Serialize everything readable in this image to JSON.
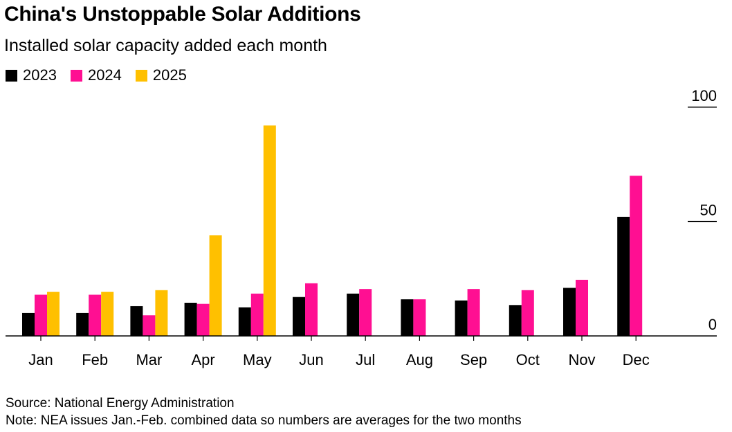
{
  "header": {
    "title": "China's Unstoppable Solar Additions",
    "subtitle": "Installed solar capacity added each month"
  },
  "footer": {
    "source": "Source: National Energy Administration",
    "note": "Note: NEA issues Jan.-Feb. combined data so numbers are averages for the two months"
  },
  "chart_data": {
    "type": "bar",
    "categories": [
      "Jan",
      "Feb",
      "Mar",
      "Apr",
      "May",
      "Jun",
      "Jul",
      "Aug",
      "Sep",
      "Oct",
      "Nov",
      "Dec"
    ],
    "series": [
      {
        "name": "2023",
        "color": "#000000",
        "values": [
          10,
          10,
          13,
          14.5,
          12.5,
          17,
          18.5,
          16,
          15.5,
          13.5,
          21,
          52
        ]
      },
      {
        "name": "2024",
        "color": "#ff0f92",
        "values": [
          18,
          18,
          9,
          14,
          18.5,
          23,
          20.5,
          16,
          20.5,
          20,
          24.5,
          70
        ]
      },
      {
        "name": "2025",
        "color": "#ffc000",
        "values": [
          19.3,
          19.3,
          20,
          44,
          92,
          null,
          null,
          null,
          null,
          null,
          null,
          null
        ]
      }
    ],
    "ylim": [
      0,
      100
    ],
    "yticks": [
      0,
      50,
      100
    ],
    "legend_position": "top-left",
    "grid": false
  }
}
